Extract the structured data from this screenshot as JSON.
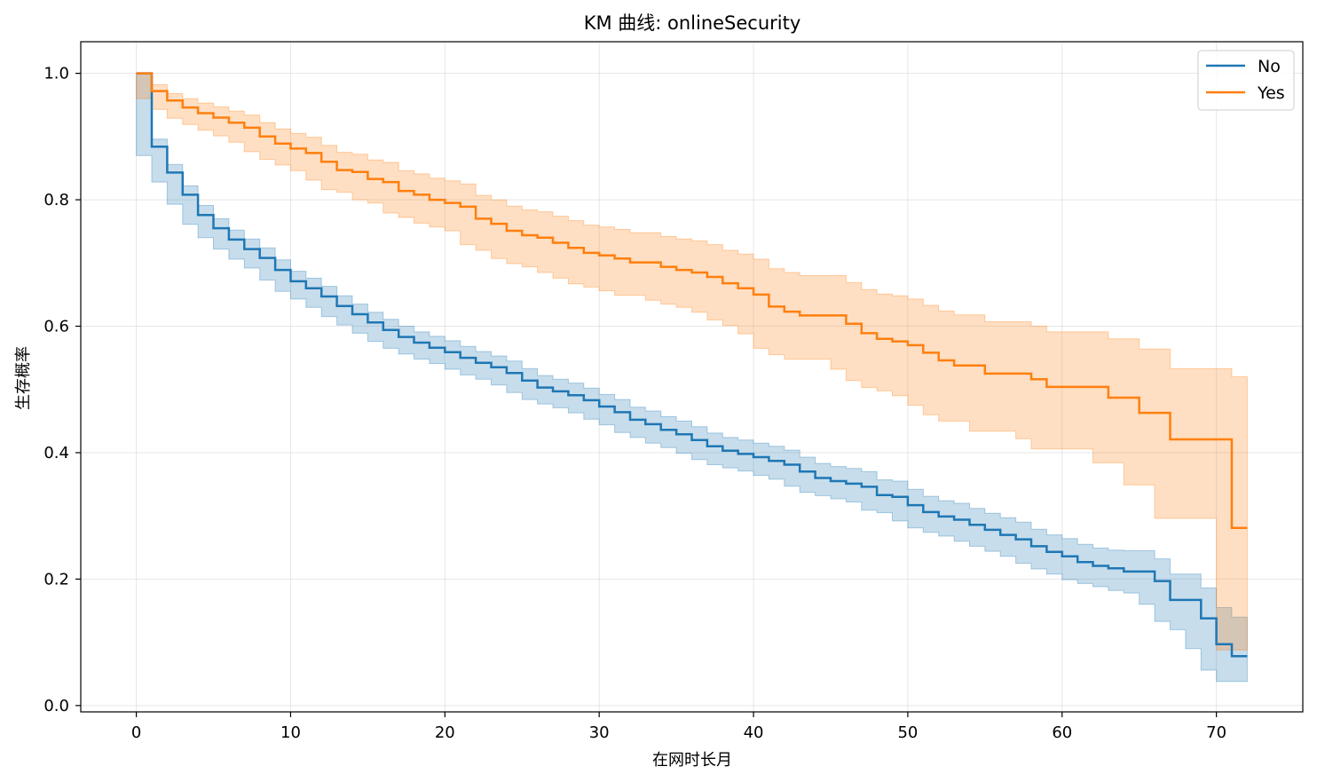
{
  "chart_data": {
    "type": "line",
    "title": "KM 曲线: onlineSecurity",
    "xlabel": "在网时长月",
    "ylabel": "生存概率",
    "xlim": [
      -3.6,
      75.6
    ],
    "ylim": [
      -0.01,
      1.05
    ],
    "x_ticks": [
      0,
      10,
      20,
      30,
      40,
      50,
      60,
      70
    ],
    "y_ticks": [
      0.0,
      0.2,
      0.4,
      0.6,
      0.8,
      1.0
    ],
    "x_tick_labels": [
      "0",
      "10",
      "20",
      "30",
      "40",
      "50",
      "60",
      "70"
    ],
    "y_tick_labels": [
      "0.0",
      "0.2",
      "0.4",
      "0.6",
      "0.8",
      "1.0"
    ],
    "grid": true,
    "legend_position": "top-right",
    "step": "post",
    "series": [
      {
        "name": "No",
        "color": "#1f77b4",
        "fill_color": "#1f77b4",
        "x": [
          0,
          1,
          2,
          3,
          4,
          5,
          6,
          7,
          8,
          9,
          10,
          11,
          12,
          13,
          14,
          15,
          16,
          17,
          18,
          19,
          20,
          21,
          22,
          23,
          24,
          25,
          26,
          27,
          28,
          29,
          30,
          31,
          32,
          33,
          34,
          35,
          36,
          37,
          38,
          39,
          40,
          41,
          42,
          43,
          44,
          45,
          46,
          47,
          48,
          49,
          50,
          51,
          52,
          53,
          54,
          55,
          56,
          57,
          58,
          59,
          60,
          61,
          62,
          63,
          64,
          65,
          66,
          67,
          68,
          69,
          70,
          71,
          72
        ],
        "y": [
          1.0,
          0.884,
          0.843,
          0.808,
          0.776,
          0.755,
          0.737,
          0.722,
          0.708,
          0.689,
          0.671,
          0.66,
          0.647,
          0.632,
          0.619,
          0.606,
          0.594,
          0.583,
          0.574,
          0.566,
          0.559,
          0.55,
          0.542,
          0.535,
          0.526,
          0.514,
          0.503,
          0.497,
          0.491,
          0.483,
          0.473,
          0.464,
          0.452,
          0.445,
          0.436,
          0.429,
          0.42,
          0.41,
          0.403,
          0.398,
          0.393,
          0.387,
          0.381,
          0.37,
          0.36,
          0.355,
          0.351,
          0.346,
          0.333,
          0.33,
          0.317,
          0.306,
          0.299,
          0.294,
          0.286,
          0.278,
          0.27,
          0.263,
          0.252,
          0.243,
          0.236,
          0.227,
          0.221,
          0.217,
          0.212,
          0.212,
          0.197,
          0.167,
          0.167,
          0.138,
          0.097,
          0.078,
          0.078
        ],
        "ci_lower": [
          1.0,
          0.87,
          0.828,
          0.793,
          0.761,
          0.74,
          0.722,
          0.706,
          0.692,
          0.673,
          0.655,
          0.643,
          0.63,
          0.615,
          0.602,
          0.589,
          0.576,
          0.565,
          0.556,
          0.548,
          0.541,
          0.532,
          0.523,
          0.516,
          0.507,
          0.495,
          0.484,
          0.477,
          0.471,
          0.463,
          0.453,
          0.444,
          0.432,
          0.424,
          0.415,
          0.408,
          0.399,
          0.389,
          0.381,
          0.376,
          0.371,
          0.364,
          0.358,
          0.347,
          0.337,
          0.332,
          0.327,
          0.322,
          0.309,
          0.305,
          0.292,
          0.281,
          0.274,
          0.268,
          0.26,
          0.252,
          0.244,
          0.236,
          0.225,
          0.216,
          0.208,
          0.199,
          0.193,
          0.188,
          0.182,
          0.178,
          0.16,
          0.133,
          0.12,
          0.09,
          0.056,
          0.038,
          0.038
        ],
        "ci_upper": [
          1.0,
          0.896,
          0.856,
          0.822,
          0.791,
          0.77,
          0.752,
          0.738,
          0.724,
          0.705,
          0.687,
          0.676,
          0.663,
          0.648,
          0.635,
          0.622,
          0.611,
          0.6,
          0.591,
          0.584,
          0.577,
          0.568,
          0.56,
          0.553,
          0.545,
          0.533,
          0.522,
          0.516,
          0.51,
          0.502,
          0.492,
          0.484,
          0.472,
          0.466,
          0.457,
          0.45,
          0.441,
          0.431,
          0.424,
          0.42,
          0.415,
          0.41,
          0.404,
          0.393,
          0.383,
          0.378,
          0.375,
          0.37,
          0.357,
          0.355,
          0.342,
          0.331,
          0.324,
          0.32,
          0.312,
          0.304,
          0.297,
          0.29,
          0.279,
          0.27,
          0.264,
          0.255,
          0.249,
          0.246,
          0.245,
          0.245,
          0.232,
          0.208,
          0.208,
          0.186,
          0.155,
          0.14,
          0.14
        ]
      },
      {
        "name": "Yes",
        "color": "#ff7f0e",
        "fill_color": "#ff7f0e",
        "x": [
          0,
          1,
          2,
          3,
          4,
          5,
          6,
          7,
          8,
          9,
          10,
          11,
          12,
          13,
          14,
          15,
          16,
          17,
          18,
          19,
          20,
          21,
          22,
          23,
          24,
          25,
          26,
          27,
          28,
          29,
          30,
          31,
          32,
          33,
          34,
          35,
          36,
          37,
          38,
          39,
          40,
          41,
          42,
          43,
          44,
          45,
          46,
          47,
          48,
          49,
          50,
          51,
          52,
          53,
          54,
          55,
          56,
          57,
          58,
          59,
          60,
          61,
          62,
          63,
          64,
          65,
          66,
          67,
          68,
          69,
          70,
          71,
          72
        ],
        "y": [
          1.0,
          0.972,
          0.957,
          0.946,
          0.937,
          0.93,
          0.922,
          0.914,
          0.9,
          0.889,
          0.881,
          0.874,
          0.86,
          0.847,
          0.844,
          0.833,
          0.828,
          0.814,
          0.808,
          0.8,
          0.795,
          0.789,
          0.77,
          0.762,
          0.751,
          0.744,
          0.74,
          0.732,
          0.724,
          0.716,
          0.712,
          0.707,
          0.701,
          0.701,
          0.694,
          0.689,
          0.685,
          0.678,
          0.668,
          0.66,
          0.65,
          0.631,
          0.623,
          0.617,
          0.617,
          0.617,
          0.604,
          0.589,
          0.58,
          0.576,
          0.57,
          0.558,
          0.546,
          0.538,
          0.538,
          0.525,
          0.525,
          0.525,
          0.516,
          0.504,
          0.504,
          0.504,
          0.504,
          0.487,
          0.487,
          0.463,
          0.463,
          0.421,
          0.421,
          0.421,
          0.421,
          0.281,
          0.281
        ],
        "ci_lower": [
          1.0,
          0.96,
          0.943,
          0.929,
          0.919,
          0.91,
          0.901,
          0.891,
          0.876,
          0.864,
          0.855,
          0.846,
          0.831,
          0.816,
          0.812,
          0.8,
          0.795,
          0.779,
          0.772,
          0.763,
          0.757,
          0.751,
          0.729,
          0.72,
          0.707,
          0.699,
          0.694,
          0.685,
          0.676,
          0.667,
          0.662,
          0.656,
          0.649,
          0.649,
          0.641,
          0.635,
          0.63,
          0.622,
          0.61,
          0.601,
          0.588,
          0.565,
          0.555,
          0.548,
          0.548,
          0.548,
          0.532,
          0.514,
          0.503,
          0.498,
          0.49,
          0.475,
          0.46,
          0.45,
          0.45,
          0.434,
          0.434,
          0.434,
          0.422,
          0.406,
          0.406,
          0.406,
          0.406,
          0.384,
          0.384,
          0.349,
          0.349,
          0.296,
          0.296,
          0.296,
          0.296,
          0.088,
          0.088
        ],
        "ci_upper": [
          1.0,
          0.982,
          0.968,
          0.96,
          0.953,
          0.947,
          0.94,
          0.934,
          0.922,
          0.912,
          0.905,
          0.899,
          0.886,
          0.875,
          0.872,
          0.863,
          0.859,
          0.846,
          0.841,
          0.834,
          0.83,
          0.825,
          0.807,
          0.8,
          0.79,
          0.784,
          0.781,
          0.774,
          0.767,
          0.76,
          0.757,
          0.753,
          0.748,
          0.748,
          0.742,
          0.738,
          0.735,
          0.729,
          0.72,
          0.714,
          0.706,
          0.691,
          0.685,
          0.68,
          0.68,
          0.68,
          0.669,
          0.658,
          0.651,
          0.648,
          0.643,
          0.633,
          0.624,
          0.618,
          0.618,
          0.607,
          0.607,
          0.607,
          0.6,
          0.591,
          0.591,
          0.591,
          0.591,
          0.58,
          0.58,
          0.564,
          0.564,
          0.533,
          0.533,
          0.533,
          0.533,
          0.52,
          0.52
        ]
      }
    ]
  }
}
